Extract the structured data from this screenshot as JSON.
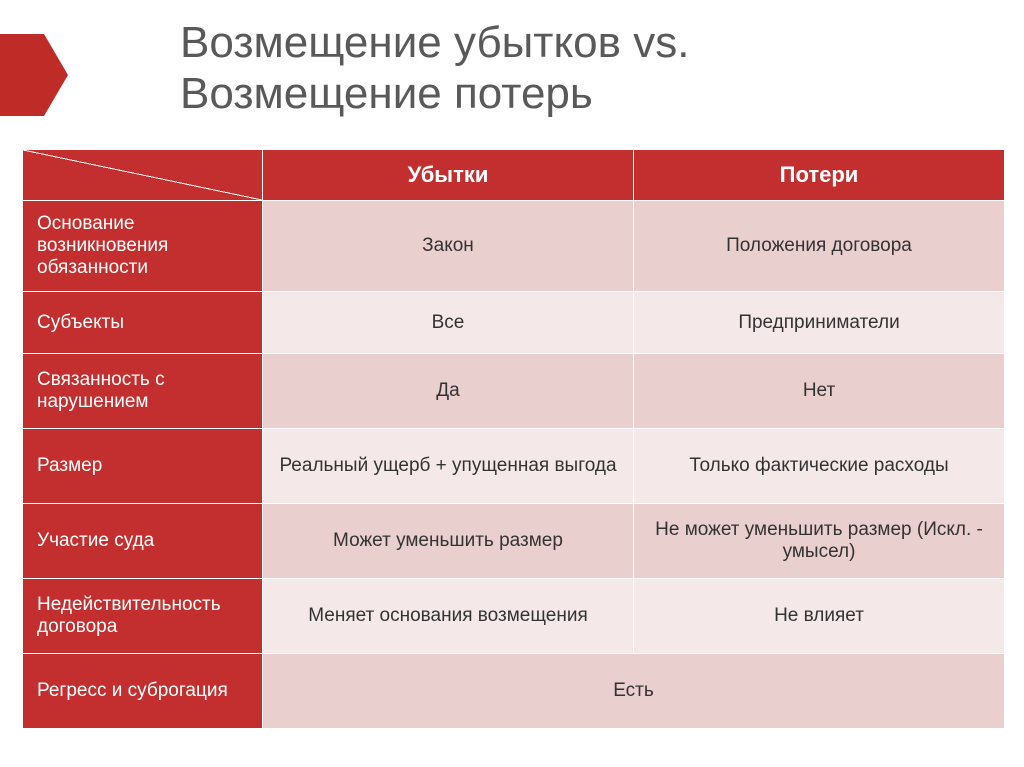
{
  "title_line1": "Возмещение убытков vs.",
  "title_line2": "Возмещение потерь",
  "col1_header": "Убытки",
  "col2_header": "Потери",
  "rows": {
    "r1": {
      "label": "Основание возникновения обязанности",
      "c1": "Закон",
      "c2": "Положения договора"
    },
    "r2": {
      "label": "Субъекты",
      "c1": "Все",
      "c2": "Предприниматели"
    },
    "r3": {
      "label": "Связанность с нарушением",
      "c1": "Да",
      "c2": "Нет"
    },
    "r4": {
      "label": "Размер",
      "c1": "Реальный ущерб + упущенная выгода",
      "c2": "Только фактические расходы"
    },
    "r5": {
      "label": "Участие суда",
      "c1": "Может уменьшить размер",
      "c2": "Не может уменьшить размер (Искл. - умысел)"
    },
    "r6": {
      "label": "Недействительность договора",
      "c1": "Меняет основания возмещения",
      "c2": "Не влияет"
    },
    "r7": {
      "label": "Регресс и суброгация",
      "merged": "Есть"
    }
  },
  "colors": {
    "accent": "#c32f2f",
    "row_odd": "#eacfcf",
    "row_even": "#f5e8e8",
    "title_text": "#595959"
  }
}
